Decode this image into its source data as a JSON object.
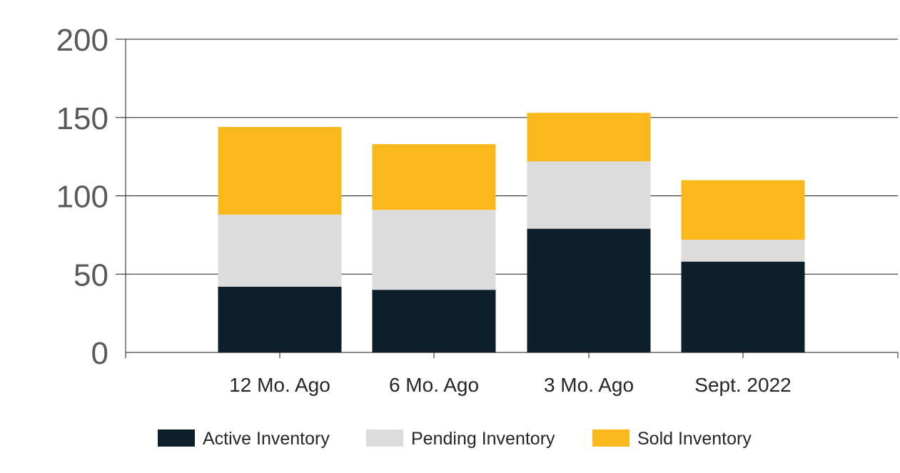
{
  "chart_data": {
    "type": "bar",
    "stacked": true,
    "categories": [
      "12 Mo. Ago",
      "6 Mo. Ago",
      "3 Mo. Ago",
      "Sept. 2022"
    ],
    "series": [
      {
        "name": "Active Inventory",
        "values": [
          42,
          40,
          79,
          58
        ],
        "color": "#0d1f2b"
      },
      {
        "name": "Pending Inventory",
        "values": [
          46,
          51,
          43,
          14
        ],
        "color": "#dcdcdc"
      },
      {
        "name": "Sold Inventory",
        "values": [
          56,
          42,
          31,
          38
        ],
        "color": "#fab81c"
      }
    ],
    "yticks": [
      0,
      50,
      100,
      150,
      200
    ],
    "ylim": [
      0,
      200
    ],
    "grid": true,
    "legend": "bottom",
    "title": "",
    "xlabel": "",
    "ylabel": ""
  }
}
